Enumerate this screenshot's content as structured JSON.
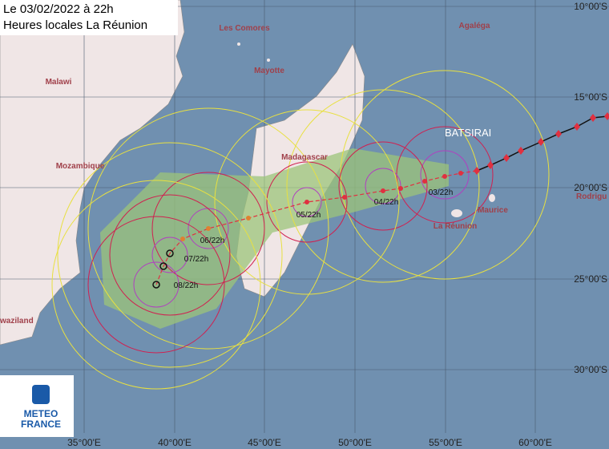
{
  "header": {
    "line1": "Le 03/02/2022 à 22h",
    "line2": "Heures locales La Réunion"
  },
  "places": [
    "Les Comores",
    "Mayotte",
    "Agaléga",
    "Malawi",
    "Mozambique",
    "Madagascar",
    "Maurice",
    "La Réunion",
    "waziland",
    "Rodrigu"
  ],
  "storm": {
    "name": "BATSIRAI",
    "forecasts": [
      "03/22h",
      "04/22h",
      "05/22h",
      "06/22h",
      "07/22h",
      "08/22h"
    ]
  },
  "lat_labels": [
    "10°00'S",
    "15°00'S",
    "20°00'S",
    "25°00'S",
    "30°00'S"
  ],
  "lon_labels": [
    "35°00'E",
    "40°00'E",
    "45°00'E",
    "50°00'E",
    "55°00'E",
    "60°00'E"
  ],
  "logo": {
    "line1": "METEO",
    "line2": "FRANCE"
  }
}
